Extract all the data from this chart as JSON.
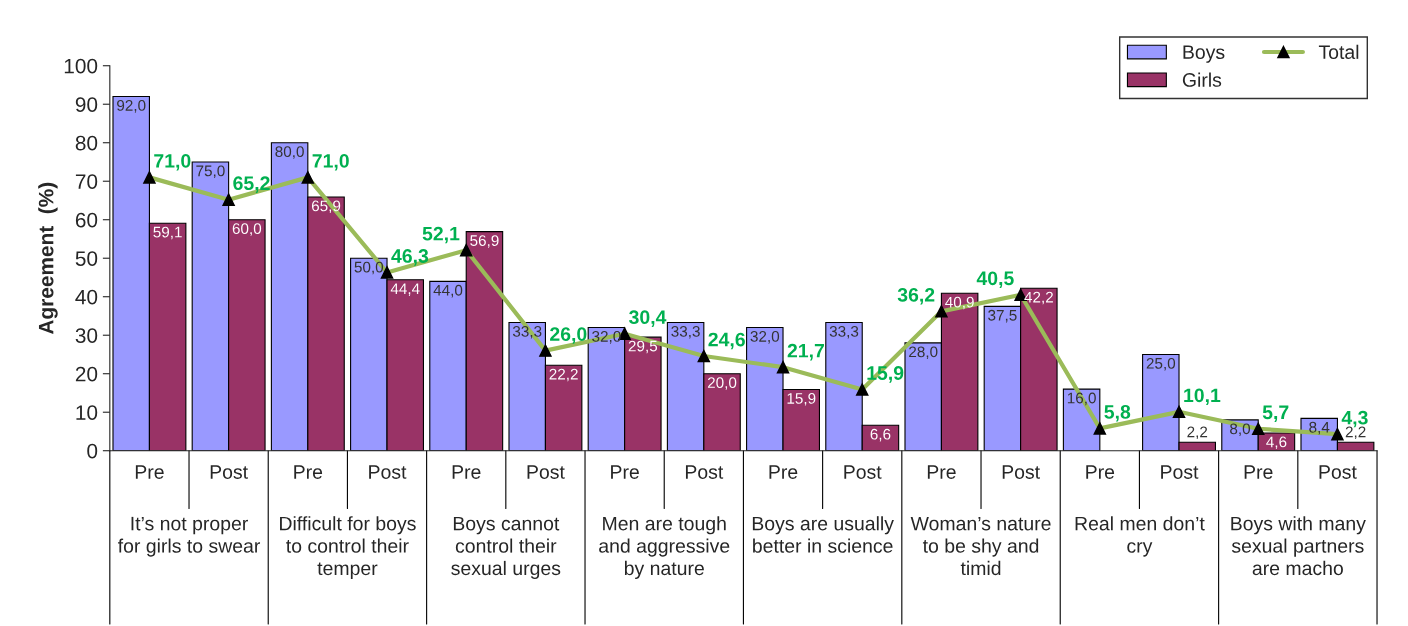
{
  "chart_data": {
    "type": "bar",
    "ylabel": "Agreement  (%)",
    "categories": [
      "Pre",
      "Post",
      "Pre",
      "Post",
      "Pre",
      "Post",
      "Pre",
      "Post",
      "Pre",
      "Post",
      "Pre",
      "Post",
      "Pre",
      "Post",
      "Pre",
      "Post"
    ],
    "annotations": [
      "It’s not proper for girls to swear",
      "Difficult for boys to control their temper",
      "Boys cannot control their sexual urges",
      "Men are tough and aggressive by nature",
      "Boys are usually better in science",
      "Woman’s nature to be shy and timid",
      "Real men don’t cry",
      "Boys with many sexual partners are macho"
    ],
    "series": [
      {
        "name": "Boys",
        "color": "#9999ff",
        "values": [
          92.0,
          75.0,
          80.0,
          50.0,
          44.0,
          33.3,
          32.0,
          33.3,
          32.0,
          33.3,
          28.0,
          37.5,
          16.0,
          25.0,
          8.0,
          8.4
        ],
        "value_labels": [
          "92,0",
          "75,0",
          "80,0",
          "50,0",
          "44,0",
          "33,3",
          "32,0",
          "33,3",
          "32,0",
          "33,3",
          "28,0",
          "37,5",
          "16,0",
          "25,0",
          "8,0",
          "8,4"
        ]
      },
      {
        "name": "Girls",
        "color": "#993366",
        "values": [
          59.1,
          60.0,
          65.9,
          44.4,
          56.9,
          22.2,
          29.5,
          20.0,
          15.9,
          6.6,
          40.9,
          42.2,
          null,
          2.2,
          4.6,
          2.2
        ],
        "value_labels": [
          "59,1",
          "60,0",
          "65,9",
          "44,4",
          "56,9",
          "22,2",
          "29,5",
          "20,0",
          "15,9",
          "6,6",
          "40,9",
          "42,2",
          null,
          "2,2",
          "4,6",
          "2,2"
        ]
      },
      {
        "name": "Total",
        "type": "line",
        "color": "#9bbb59",
        "marker": "triangle",
        "values": [
          71.0,
          65.2,
          71.0,
          46.3,
          52.1,
          26.0,
          30.4,
          24.6,
          21.7,
          15.9,
          36.2,
          40.5,
          5.8,
          10.1,
          5.7,
          4.3
        ],
        "value_labels": [
          "71,0",
          "65,2",
          "71,0",
          "46,3",
          "52,1",
          "26,0",
          "30,4",
          "24,6",
          "21,7",
          "15,9",
          "36,2",
          "40,5",
          "5,8",
          "10,1",
          "5,7",
          "4,3"
        ]
      }
    ],
    "ylim": [
      0,
      100
    ],
    "yticks": [
      0,
      10,
      20,
      30,
      40,
      50,
      60,
      70,
      80,
      90,
      100
    ],
    "grid": false,
    "legend": "top right"
  }
}
